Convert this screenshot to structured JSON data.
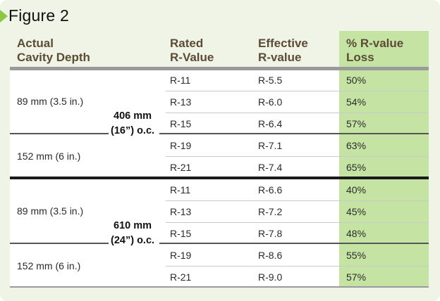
{
  "figure_title": "Figure 2",
  "headers": {
    "depth": [
      "Actual",
      "Cavity Depth"
    ],
    "rated": [
      "Rated",
      "R-Value"
    ],
    "effective": [
      "Effective",
      "R-value"
    ],
    "loss": [
      "% R-value",
      "Loss"
    ]
  },
  "groups": [
    {
      "spacing": [
        "406 mm",
        "(16”) o.c."
      ],
      "depths": [
        "89 mm (3.5 in.)",
        "152 mm (6 in.)"
      ],
      "rows": [
        {
          "rated": "R-11",
          "effective": "R-5.5",
          "loss": "50%"
        },
        {
          "rated": "R-13",
          "effective": "R-6.0",
          "loss": "54%"
        },
        {
          "rated": "R-15",
          "effective": "R-6.4",
          "loss": "57%"
        },
        {
          "rated": "R-19",
          "effective": "R-7.1",
          "loss": "63%"
        },
        {
          "rated": "R-21",
          "effective": "R-7.4",
          "loss": "65%"
        }
      ]
    },
    {
      "spacing": [
        "610 mm",
        "(24”) o.c."
      ],
      "depths": [
        "89 mm (3.5 in.)",
        "152 mm (6 in.)"
      ],
      "rows": [
        {
          "rated": "R-11",
          "effective": "R-6.6",
          "loss": "40%"
        },
        {
          "rated": "R-13",
          "effective": "R-7.2",
          "loss": "45%"
        },
        {
          "rated": "R-15",
          "effective": "R-7.8",
          "loss": "48%"
        },
        {
          "rated": "R-19",
          "effective": "R-8.6",
          "loss": "55%"
        },
        {
          "rated": "R-21",
          "effective": "R-9.0",
          "loss": "57%"
        }
      ]
    }
  ],
  "colors": {
    "panel_bg": "#eff4e6",
    "accent_green": "#8dc63f",
    "loss_column": "#c5e4a3",
    "header_text": "#5c4b35"
  }
}
